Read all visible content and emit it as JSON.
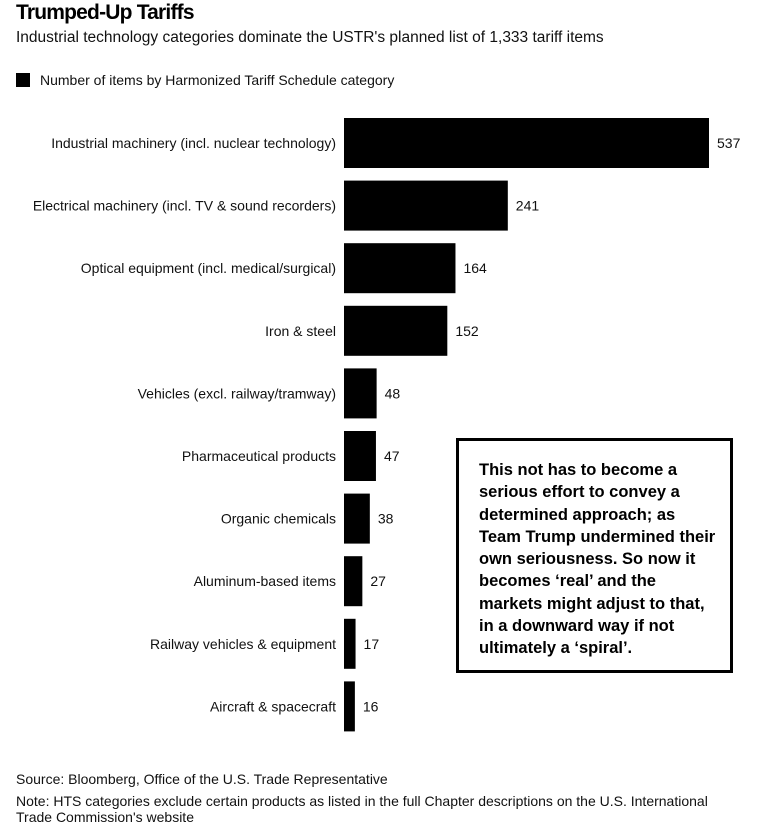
{
  "header": {
    "title": "Trumped-Up Tariffs",
    "subtitle": "Industrial technology categories dominate the USTR's planned list of 1,333 tariff items"
  },
  "legend": {
    "label": "Number of items by Harmonized Tariff Schedule category",
    "color": "#000000"
  },
  "chart_data": {
    "type": "bar",
    "orientation": "horizontal",
    "categories": [
      "Industrial machinery (incl. nuclear technology)",
      "Electrical machinery (incl. TV & sound recorders)",
      "Optical equipment (incl. medical/surgical)",
      "Iron & steel",
      "Vehicles (excl. railway/tramway)",
      "Pharmaceutical products",
      "Organic chemicals",
      "Aluminum-based items",
      "Railway vehicles & equipment",
      "Aircraft & spacecraft"
    ],
    "values": [
      537,
      241,
      164,
      152,
      48,
      47,
      38,
      27,
      17,
      16
    ],
    "series": [
      {
        "name": "Number of items by Harmonized Tariff Schedule category",
        "color": "#000000",
        "values": [
          537,
          241,
          164,
          152,
          48,
          47,
          38,
          27,
          17,
          16
        ]
      }
    ],
    "data_labels": true,
    "grid": false,
    "xlim": [
      0,
      537
    ],
    "legend_position": "top-left"
  },
  "annotation": {
    "text": "This not has to become a serious effort to convey a determined approach; as Team Trump undermined their own seriousness. So now it becomes ‘real’ and the markets might adjust to that, in a downward way if not ultimately a ‘spiral’."
  },
  "footer": {
    "source": "Source: Bloomberg, Office of the U.S. Trade Representative",
    "note": "Note: HTS categories exclude certain products as listed in the full Chapter descriptions on the U.S. International Trade Commission's website"
  }
}
